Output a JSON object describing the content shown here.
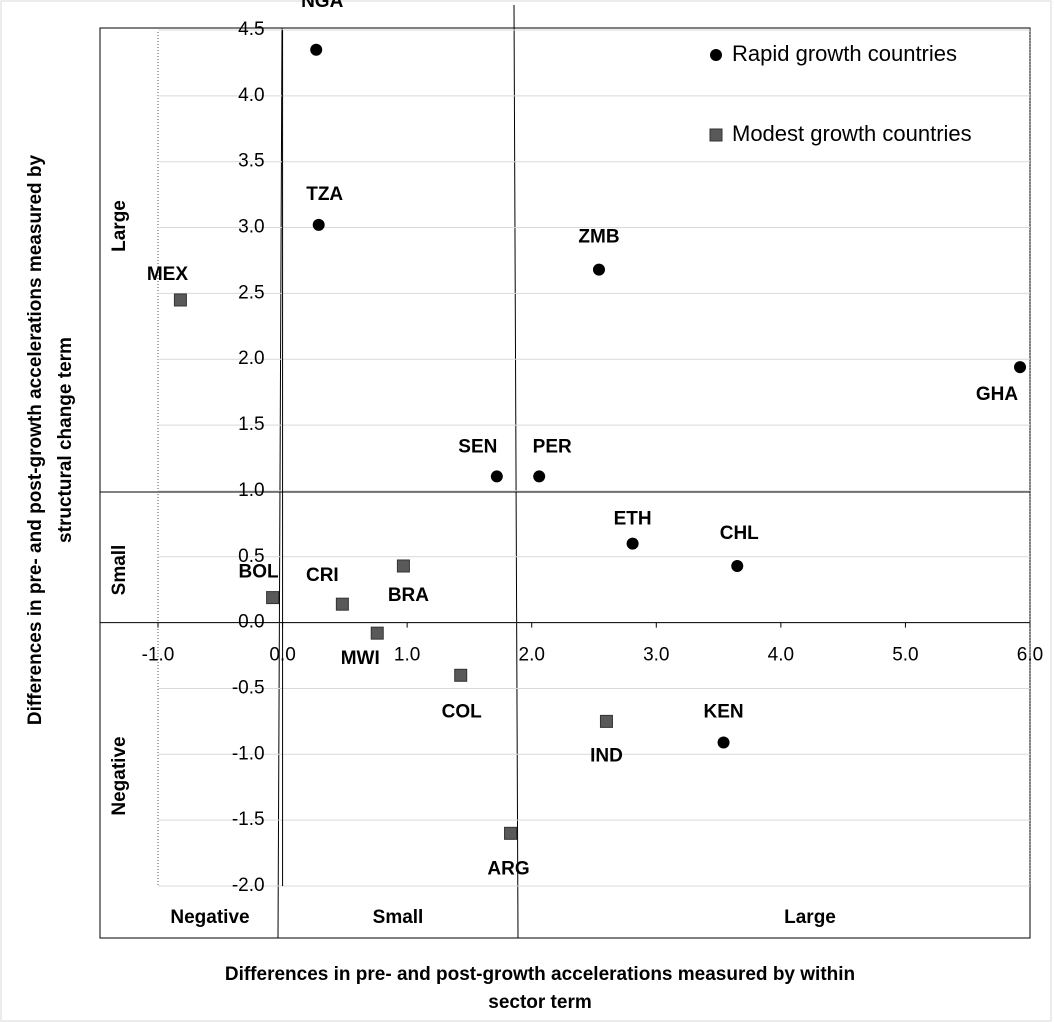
{
  "chart_data": {
    "type": "scatter",
    "x_label": [
      "Differences in pre- and post-growth accelerations measured by within",
      "sector term"
    ],
    "y_label": [
      "Differences in pre- and post-growth accelerations measured by",
      "structural change term"
    ],
    "x_regions": [
      "Negative",
      "Small",
      "Large"
    ],
    "y_regions": [
      "Large",
      "Small",
      "Negative"
    ],
    "xlim": [
      -1,
      6
    ],
    "ylim": [
      -2,
      4.5
    ],
    "xticks": [
      {
        "value": -1,
        "label": "-1.0"
      },
      {
        "value": 0,
        "label": "0.0"
      },
      {
        "value": 1,
        "label": "1.0"
      },
      {
        "value": 2,
        "label": "2.0"
      },
      {
        "value": 3,
        "label": "3.0"
      },
      {
        "value": 4,
        "label": "4.0"
      },
      {
        "value": 5,
        "label": "5.0"
      },
      {
        "value": 6,
        "label": "6.0"
      }
    ],
    "yticks": [
      {
        "value": -2,
        "label": "-2.0"
      },
      -1.5,
      {
        "value": -1,
        "label": "-1.0"
      },
      -0.5,
      {
        "value": 0,
        "label": "0.0"
      },
      0.5,
      {
        "value": 1,
        "label": "1.0"
      },
      1.5,
      {
        "value": 2,
        "label": "2.0"
      },
      2.5,
      {
        "value": 3,
        "label": "3.0"
      },
      3.5,
      {
        "value": 4,
        "label": "4.0"
      },
      4.5
    ],
    "grid": true,
    "legend": "top-right",
    "series": [
      {
        "name": "Rapid growth countries",
        "color": "#000000",
        "marker": "circle",
        "labels": [
          "NGA",
          "TZA",
          "ZMB",
          "GHA",
          "SEN",
          "PER",
          "ETH",
          "CHL",
          "KEN"
        ],
        "x": [
          0.27,
          0.29,
          2.54,
          5.92,
          1.72,
          2.06,
          2.81,
          3.65,
          3.54
        ],
        "values": [
          4.35,
          3.02,
          2.68,
          1.94,
          1.11,
          1.11,
          0.6,
          0.43,
          -0.91
        ]
      },
      {
        "name": "Modest growth countries",
        "color": "#595959",
        "marker": "square",
        "labels": [
          "MEX",
          "BOL",
          "CRI",
          "BRA",
          "MWI",
          "COL",
          "IND",
          "ARG"
        ],
        "x": [
          -0.82,
          -0.08,
          0.48,
          0.97,
          0.76,
          1.43,
          2.6,
          1.83
        ],
        "values": [
          2.45,
          0.19,
          0.14,
          0.43,
          -0.08,
          -0.4,
          -0.75,
          -1.6
        ]
      }
    ]
  }
}
